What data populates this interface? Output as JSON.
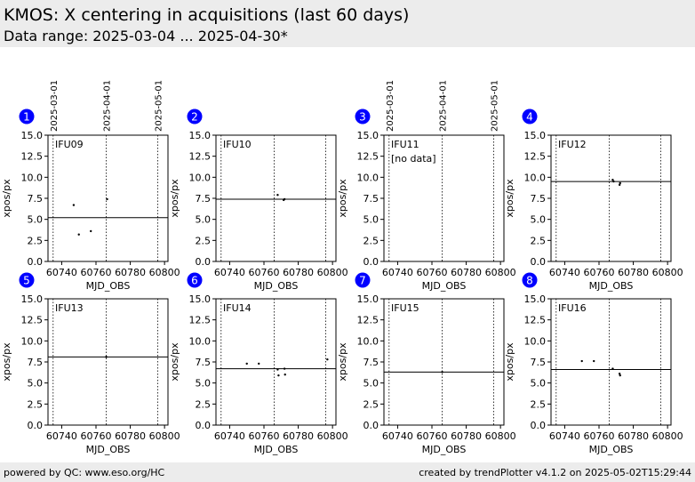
{
  "header": {
    "title": "KMOS: X centering in acquisitions (last 60 days)",
    "subtitle": "Data range: 2025-03-04 ... 2025-04-30*"
  },
  "footer": {
    "left": "powered by QC: www.eso.org/HC",
    "right": "created by trendPlotter v4.1.2 on 2025-05-02T15:29:44"
  },
  "colors": {
    "badge": "#0000ff",
    "badge_text": "#ffffff",
    "marks": "#000000",
    "header_bg": "#ececec"
  },
  "chart_data": {
    "type": "scatter",
    "xlabel": "MJD_OBS",
    "ylabel": "xpos/px",
    "xlim": [
      60732,
      60802
    ],
    "ylim": [
      0,
      15
    ],
    "xticks": [
      60740,
      60760,
      60780,
      60800
    ],
    "xtick_labels": [
      "60740",
      "60760",
      "60780",
      "60800"
    ],
    "yticks": [
      0,
      2.5,
      5,
      7.5,
      10,
      12.5,
      15
    ],
    "ytick_labels": [
      "0.0",
      "2.5",
      "5.0",
      "7.5",
      "10.0",
      "12.5",
      "15.0"
    ],
    "date_markers": [
      {
        "mjd": 60735,
        "label": "2025-03-01"
      },
      {
        "mjd": 60766,
        "label": "2025-04-01"
      },
      {
        "mjd": 60796,
        "label": "2025-05-01"
      }
    ],
    "panels": [
      {
        "number": "1",
        "name": "IFU09",
        "note": "",
        "reference": 5.2,
        "points": [
          [
            60747,
            6.7
          ],
          [
            60750,
            3.2
          ],
          [
            60757,
            3.6
          ],
          [
            60766.5,
            7.4
          ]
        ]
      },
      {
        "number": "2",
        "name": "IFU10",
        "note": "",
        "reference": 7.4,
        "points": [
          [
            60768,
            7.9
          ],
          [
            60771.5,
            7.3
          ],
          [
            60772,
            7.4
          ]
        ]
      },
      {
        "number": "3",
        "name": "IFU11",
        "note": "[no data]",
        "reference": null,
        "points": []
      },
      {
        "number": "4",
        "name": "IFU12",
        "note": "",
        "reference": 9.5,
        "points": [
          [
            60768,
            9.7
          ],
          [
            60768.5,
            9.5
          ],
          [
            60772,
            9.1
          ],
          [
            60772.3,
            9.3
          ]
        ]
      },
      {
        "number": "5",
        "name": "IFU13",
        "note": "",
        "reference": 8.1,
        "points": [
          [
            60766,
            8.1
          ]
        ]
      },
      {
        "number": "6",
        "name": "IFU14",
        "note": "",
        "reference": 6.7,
        "points": [
          [
            60750,
            7.3
          ],
          [
            60757,
            7.3
          ],
          [
            60768,
            6.6
          ],
          [
            60768.5,
            5.9
          ],
          [
            60772,
            6.7
          ],
          [
            60772.3,
            6.0
          ],
          [
            60797,
            7.8
          ]
        ]
      },
      {
        "number": "7",
        "name": "IFU15",
        "note": "",
        "reference": 6.3,
        "points": [
          [
            60766,
            6.3
          ]
        ]
      },
      {
        "number": "8",
        "name": "IFU16",
        "note": "",
        "reference": 6.6,
        "points": [
          [
            60750,
            7.6
          ],
          [
            60757,
            7.6
          ],
          [
            60768,
            6.7
          ],
          [
            60772,
            6.1
          ],
          [
            60772.3,
            5.9
          ]
        ]
      }
    ]
  }
}
